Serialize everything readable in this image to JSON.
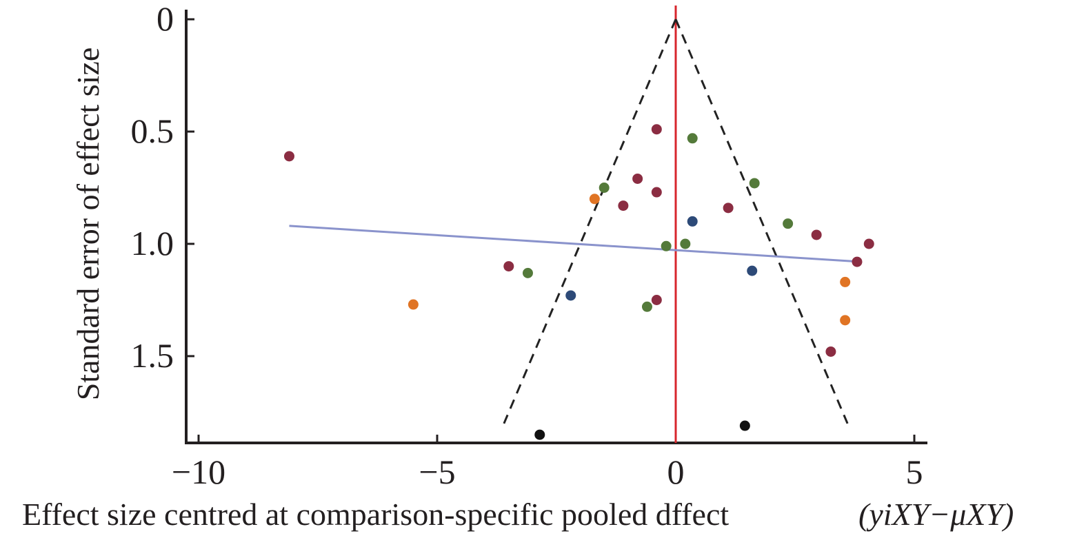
{
  "chart_data": {
    "type": "scatter",
    "title": "",
    "xlabel_main": "Effect size centred at comparison-specific pooled dffect",
    "xlabel_formula": "(yiXY−μXY)",
    "ylabel": "Standard error of effect size",
    "xlim": [
      -10.5,
      5.5
    ],
    "ylim_reversed": [
      0,
      1.85
    ],
    "x_ticks": [
      -10,
      -5,
      0,
      5
    ],
    "x_tick_labels": [
      "−10",
      "−5",
      "0",
      "5"
    ],
    "y_ticks": [
      0,
      0.5,
      1.0,
      1.5
    ],
    "y_tick_labels": [
      "0",
      "0.5",
      "1.0",
      "1.5"
    ],
    "grid": false,
    "reference_line_x": 0,
    "funnel": {
      "apex": [
        0,
        0
      ],
      "left_bottom": [
        -3.6,
        1.8
      ],
      "right_bottom": [
        3.6,
        1.8
      ]
    },
    "regression_line": {
      "x": [
        -8.1,
        3.9
      ],
      "y": [
        0.92,
        1.08
      ]
    },
    "colors": {
      "maroon": "#8b2d42",
      "green": "#547a3a",
      "orange": "#e07424",
      "blue": "#2d4a78",
      "black": "#111111",
      "axis": "#231f20",
      "reference": "#d7262c",
      "regression": "#8a93cc",
      "funnel": "#222222"
    },
    "points": [
      {
        "x": -8.1,
        "y": 0.61,
        "color": "maroon"
      },
      {
        "x": -0.4,
        "y": 0.49,
        "color": "maroon"
      },
      {
        "x": -0.8,
        "y": 0.71,
        "color": "maroon"
      },
      {
        "x": -0.4,
        "y": 0.77,
        "color": "maroon"
      },
      {
        "x": -1.1,
        "y": 0.83,
        "color": "maroon"
      },
      {
        "x": 1.1,
        "y": 0.84,
        "color": "maroon"
      },
      {
        "x": 2.95,
        "y": 0.96,
        "color": "maroon"
      },
      {
        "x": 4.05,
        "y": 1.0,
        "color": "maroon"
      },
      {
        "x": 3.8,
        "y": 1.08,
        "color": "maroon"
      },
      {
        "x": -3.5,
        "y": 1.1,
        "color": "maroon"
      },
      {
        "x": -0.4,
        "y": 1.25,
        "color": "maroon"
      },
      {
        "x": 3.25,
        "y": 1.48,
        "color": "maroon"
      },
      {
        "x": 0.35,
        "y": 0.53,
        "color": "green"
      },
      {
        "x": 1.65,
        "y": 0.73,
        "color": "green"
      },
      {
        "x": -1.5,
        "y": 0.75,
        "color": "green"
      },
      {
        "x": 2.35,
        "y": 0.91,
        "color": "green"
      },
      {
        "x": -0.2,
        "y": 1.01,
        "color": "green"
      },
      {
        "x": 0.2,
        "y": 1.0,
        "color": "green"
      },
      {
        "x": -3.1,
        "y": 1.13,
        "color": "green"
      },
      {
        "x": -0.6,
        "y": 1.28,
        "color": "green"
      },
      {
        "x": -1.7,
        "y": 0.8,
        "color": "orange"
      },
      {
        "x": -5.5,
        "y": 1.27,
        "color": "orange"
      },
      {
        "x": 3.55,
        "y": 1.17,
        "color": "orange"
      },
      {
        "x": 3.55,
        "y": 1.34,
        "color": "orange"
      },
      {
        "x": 0.35,
        "y": 0.9,
        "color": "blue"
      },
      {
        "x": 1.6,
        "y": 1.12,
        "color": "blue"
      },
      {
        "x": -2.2,
        "y": 1.23,
        "color": "blue"
      },
      {
        "x": -2.85,
        "y": 1.85,
        "color": "black"
      },
      {
        "x": 1.45,
        "y": 1.81,
        "color": "black"
      }
    ]
  }
}
